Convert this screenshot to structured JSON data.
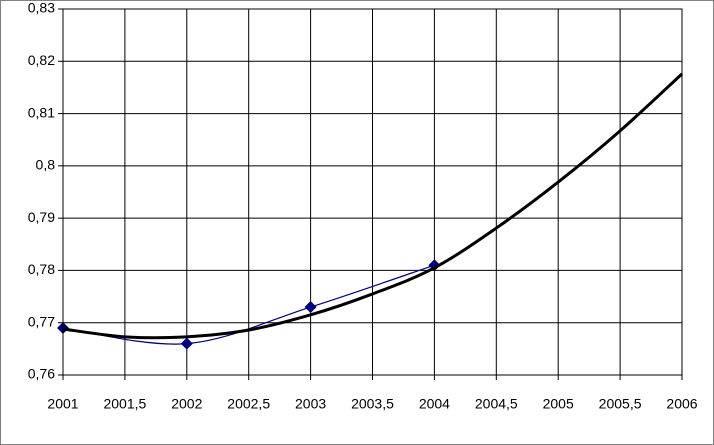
{
  "chart_data": {
    "type": "line",
    "series": [
      {
        "color": "#000080",
        "marker": "diamond",
        "width": 1.2,
        "x": [
          2001,
          2002,
          2003,
          2004
        ],
        "values": [
          0.769,
          0.766,
          0.773,
          0.781
        ]
      },
      {
        "color": "#000000",
        "marker": "none",
        "width": 3,
        "x": [
          2001,
          2001.5,
          2002,
          2002.5,
          2003,
          2003.5,
          2004,
          2004.5,
          2005,
          2005.5,
          2006
        ],
        "values": [
          0.7688,
          0.7673,
          0.7673,
          0.7686,
          0.7715,
          0.7755,
          0.7805,
          0.7881,
          0.7969,
          0.8067,
          0.8176
        ]
      }
    ],
    "xlim": [
      2001,
      2006
    ],
    "xticks": [
      2001,
      {
        "value": 2001.5,
        "label": "2001,5"
      },
      2002,
      {
        "value": 2002.5,
        "label": "2002,5"
      },
      2003,
      {
        "value": 2003.5,
        "label": "2003,5"
      },
      2004,
      {
        "value": 2004.5,
        "label": "2004,5"
      },
      2005,
      {
        "value": 2005.5,
        "label": "2005,5"
      },
      2006
    ],
    "ylim": [
      0.76,
      0.83
    ],
    "yticks": [
      {
        "value": 0.76,
        "label": "0,76"
      },
      {
        "value": 0.77,
        "label": "0,77"
      },
      {
        "value": 0.78,
        "label": "0,78"
      },
      {
        "value": 0.79,
        "label": "0,79"
      },
      {
        "value": 0.8,
        "label": "0,8"
      },
      {
        "value": 0.81,
        "label": "0,81"
      },
      {
        "value": 0.82,
        "label": "0,82"
      },
      {
        "value": 0.83,
        "label": "0,83"
      }
    ],
    "grid": true
  }
}
